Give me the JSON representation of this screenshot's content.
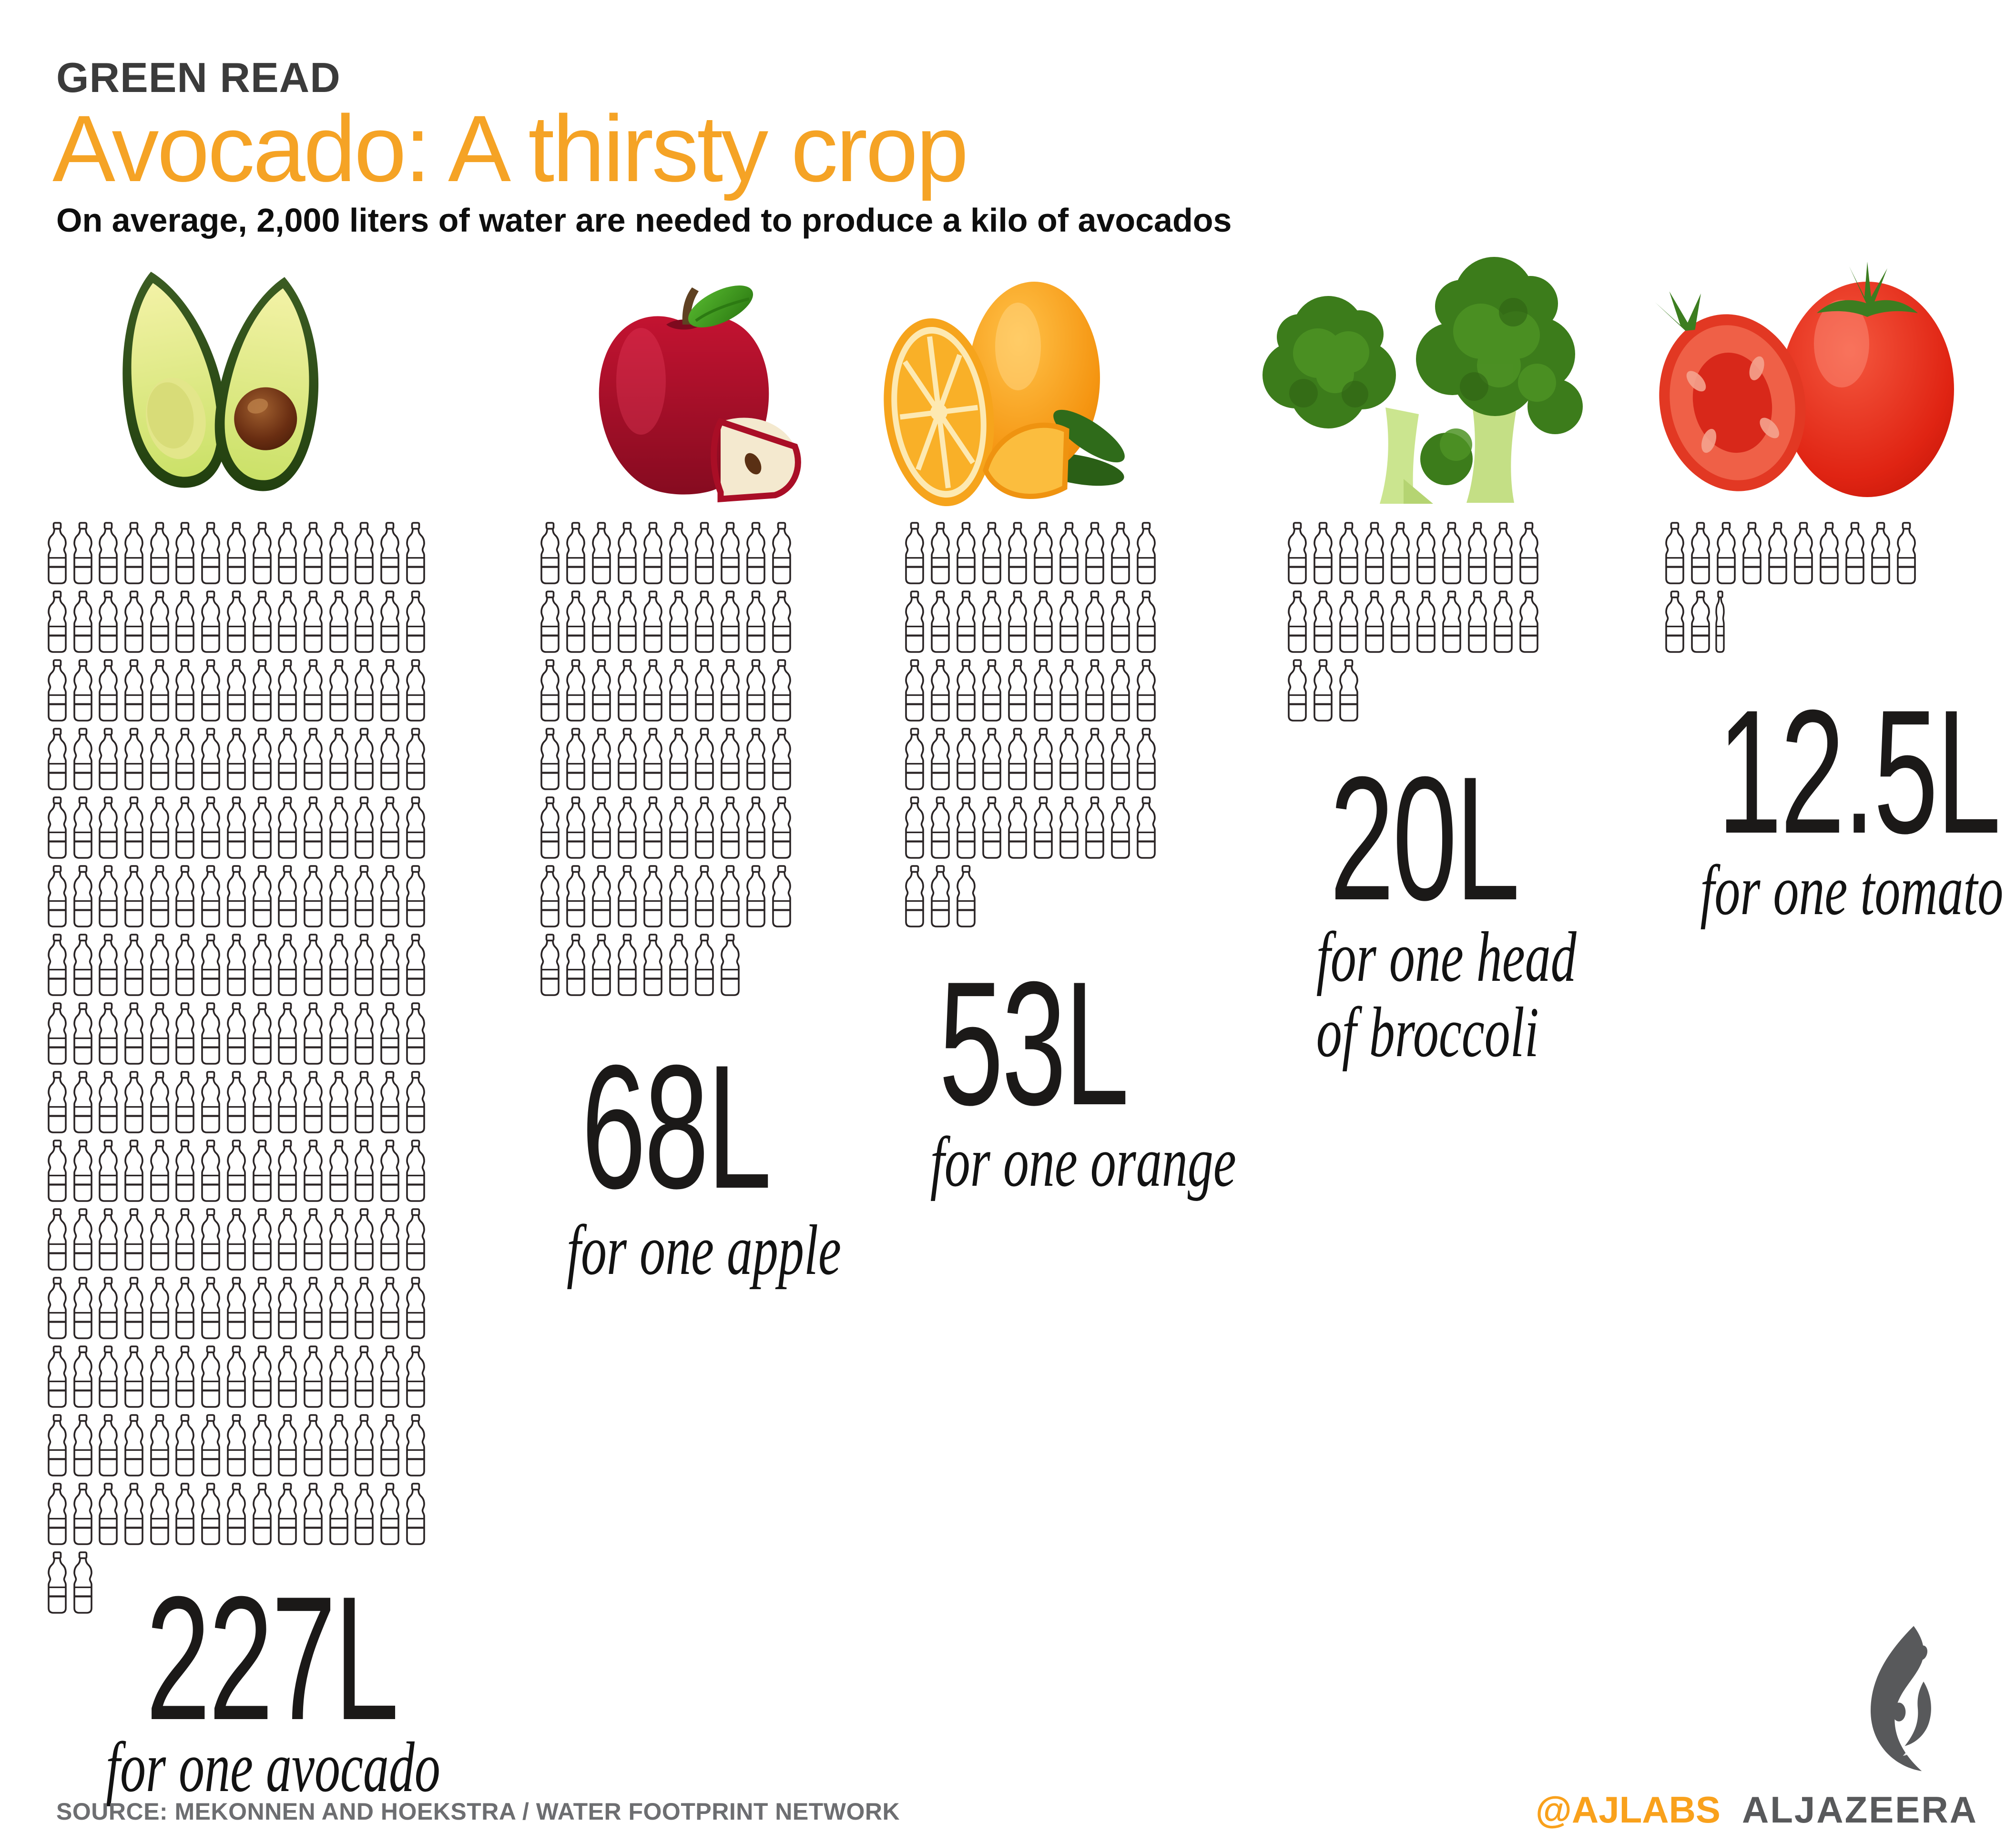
{
  "header": {
    "kicker": "GREEN READ",
    "title": "Avocado: A thirsty crop",
    "subtitle": "On average, 2,000 liters of water are needed to produce a kilo of avocados"
  },
  "chart_data": {
    "type": "pictogram",
    "title": "Avocado: A thirsty crop",
    "subtitle": "On average, 2,000 liters of water are needed to produce a kilo of avocados",
    "unit_icon": "water-bottle",
    "unit_note": "one bottle icon = 1 liter, narrow half bottle = 0.5 liter",
    "categories": [
      "avocado",
      "apple",
      "orange",
      "broccoli",
      "tomato"
    ],
    "values": [
      227,
      68,
      53,
      20,
      12.5
    ],
    "value_labels": [
      "227L",
      "68L",
      "53L",
      "20L",
      "12.5L"
    ],
    "captions": [
      "for one avocado",
      "for one apple",
      "for one orange",
      "for one head of broccoli",
      "for one tomato"
    ],
    "legend_position": "none",
    "grid": "off"
  },
  "sections": [
    {
      "id": "avocado",
      "value_label": "227L",
      "caption_lines": [
        "for one avocado"
      ],
      "liters": 227,
      "bottle_rows": [
        15,
        15,
        15,
        15,
        15,
        15,
        15,
        15,
        15,
        15,
        15,
        15,
        15,
        15,
        15,
        2
      ],
      "half_bottle_in_last_row": false
    },
    {
      "id": "apple",
      "value_label": "68L",
      "caption_lines": [
        "for one apple"
      ],
      "liters": 68,
      "bottle_rows": [
        10,
        10,
        10,
        10,
        10,
        10,
        8
      ],
      "half_bottle_in_last_row": false
    },
    {
      "id": "orange",
      "value_label": "53L",
      "caption_lines": [
        "for one orange"
      ],
      "liters": 53,
      "bottle_rows": [
        10,
        10,
        10,
        10,
        10,
        3
      ],
      "half_bottle_in_last_row": false
    },
    {
      "id": "broccoli",
      "value_label": "20L",
      "caption_lines": [
        "for one head",
        "of broccoli"
      ],
      "liters": 20,
      "bottle_rows": [
        10,
        10,
        3
      ],
      "half_bottle_in_last_row": false
    },
    {
      "id": "tomato",
      "value_label": "12.5L",
      "caption_lines": [
        "for one tomato"
      ],
      "liters": 12.5,
      "bottle_rows": [
        10,
        2
      ],
      "half_bottle_in_last_row": true
    }
  ],
  "footer": {
    "source": "SOURCE:  MEKONNEN AND HOEKSTRA / WATER FOOTPRINT NETWORK",
    "social_handle": "@AJLABS",
    "brand": "ALJAZEERA"
  },
  "colors": {
    "accent_orange": "#F5A325",
    "ajlabs_orange": "#F9A11C",
    "text_dark": "#1B1918",
    "kicker_gray": "#3B3B3B",
    "source_gray": "#6D6E71",
    "brand_gray": "#58595B",
    "bottle_outline": "#2A2425"
  }
}
